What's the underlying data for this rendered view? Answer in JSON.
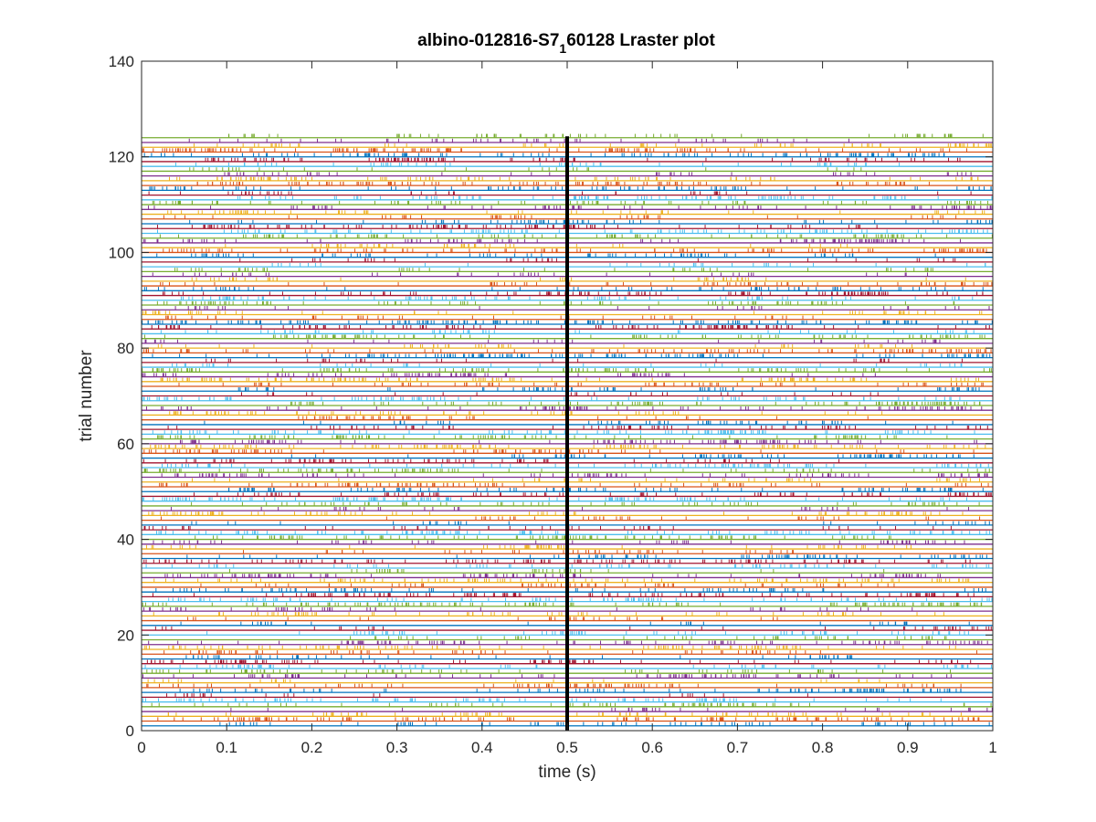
{
  "chart_data": {
    "type": "raster",
    "title_main": "albino-012816-S7",
    "title_sub": "1",
    "title_rest": "60128 Lraster plot",
    "xlabel": "time (s)",
    "ylabel": "trial number",
    "xlim": [
      0,
      1
    ],
    "ylim": [
      0,
      140
    ],
    "xticks": [
      "0",
      "0.1",
      "0.2",
      "0.3",
      "0.4",
      "0.5",
      "0.6",
      "0.7",
      "0.8",
      "0.9",
      "1"
    ],
    "yticks": [
      "0",
      "20",
      "40",
      "60",
      "80",
      "100",
      "120",
      "140"
    ],
    "num_trials": 124,
    "event_marker_time": 0.5,
    "colors": {
      "series": [
        "#0072BD",
        "#D95319",
        "#EDB120",
        "#7E2F8E",
        "#77AC30",
        "#4DBEEE",
        "#A2142F"
      ],
      "marker": "#000000",
      "axis": "#262626"
    }
  }
}
